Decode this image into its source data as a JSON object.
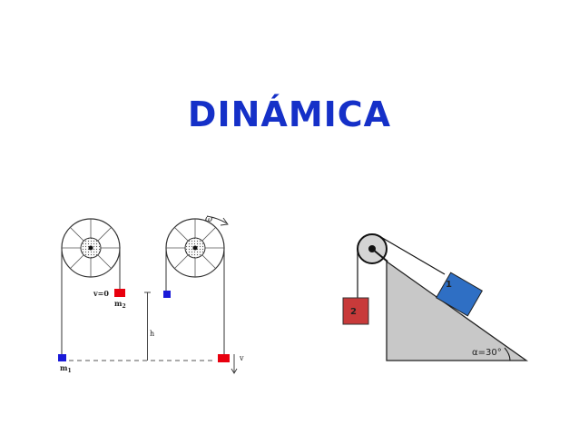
{
  "title": "DINÁMICA",
  "left_figure": {
    "omega": "ω",
    "v0": "v=0",
    "m2_main": "m",
    "m2_sub": "2",
    "m1_main": "m",
    "m1_sub": "1",
    "h": "h",
    "v": "v"
  },
  "right_figure": {
    "block1": "1",
    "block2": "2",
    "angle": "α=30°"
  },
  "colors": {
    "title": "#1530c8",
    "red_block": "#e8000e",
    "blue_block": "#1a1ad8",
    "incline": "#c8c8c8",
    "block1": "#2f6fc4",
    "block2": "#c83a3a"
  }
}
